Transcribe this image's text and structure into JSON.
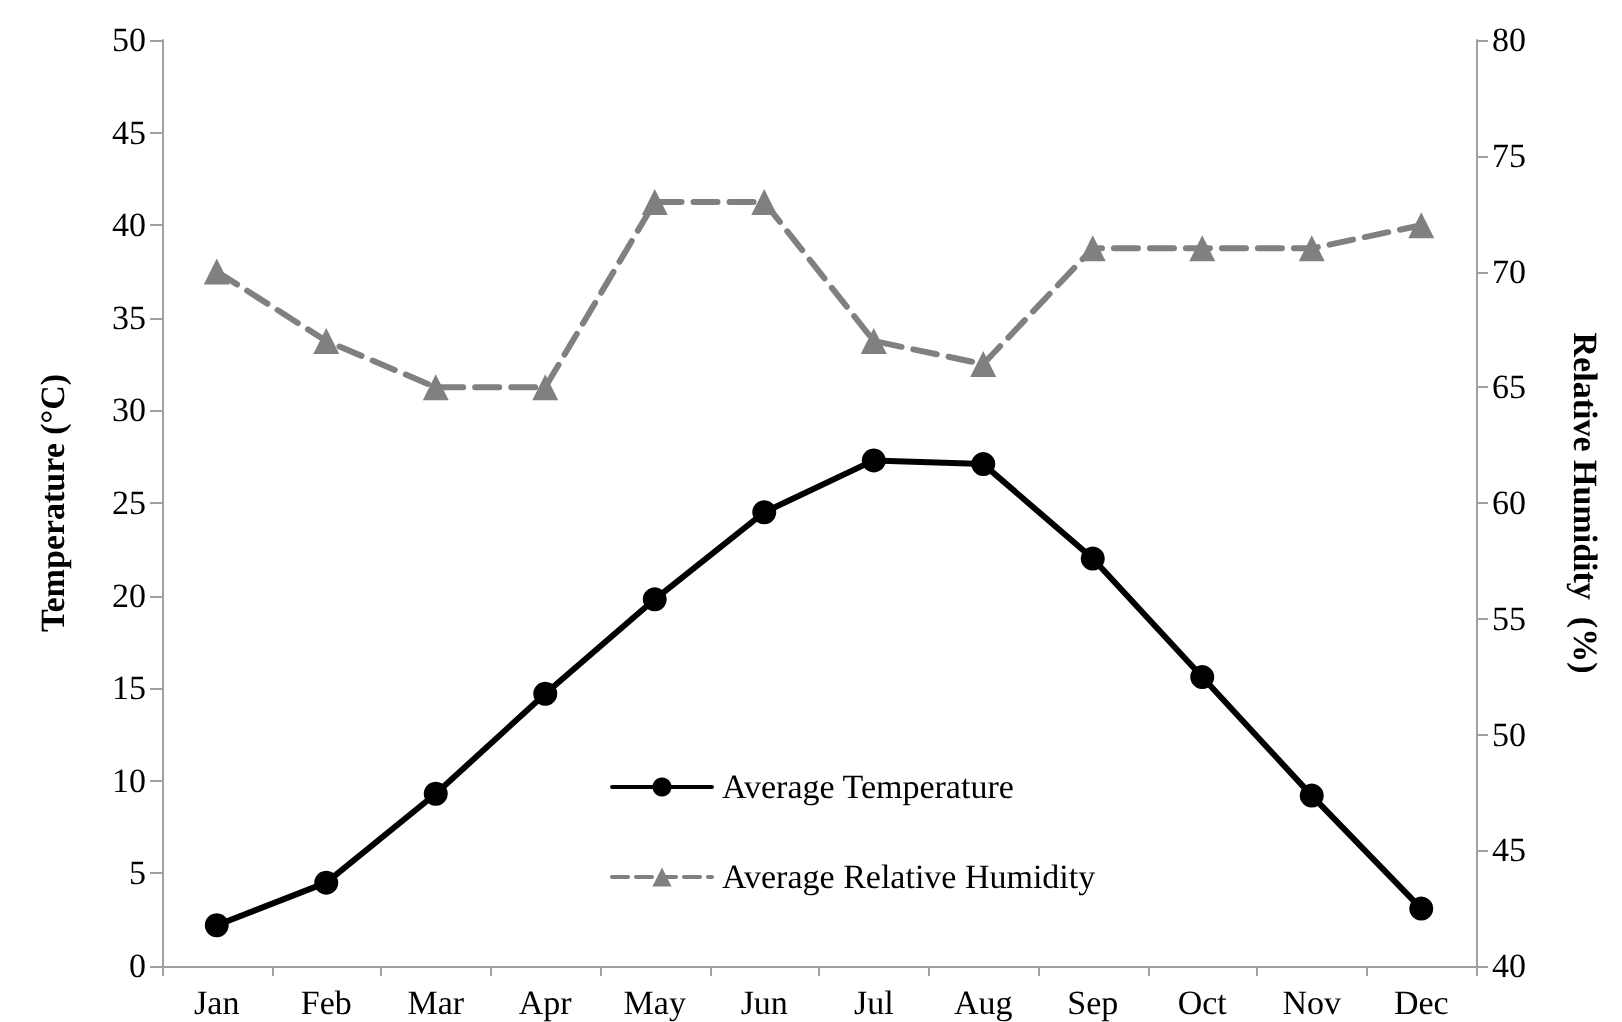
{
  "chart_data": {
    "type": "line",
    "ylabel": "Temperature (°C)",
    "y2label": "Relative Humidity  (%)",
    "categories": [
      "Jan",
      "Feb",
      "Mar",
      "Apr",
      "May",
      "Jun",
      "Jul",
      "Aug",
      "Sep",
      "Oct",
      "Nov",
      "Dec"
    ],
    "series": [
      {
        "name": "Average Temperature",
        "color": "#000000",
        "marker": "circle",
        "line_style": "solid",
        "values": [
          2.2,
          4.5,
          9.3,
          14.7,
          19.8,
          24.5,
          27.3,
          27.1,
          22.0,
          15.6,
          9.2,
          3.1
        ]
      },
      {
        "name": "Average Relative Humidity",
        "color": "#808080",
        "marker": "triangle",
        "line_style": "dashed",
        "axis": "y2",
        "values": [
          70,
          67,
          65,
          65,
          73,
          73,
          67,
          66,
          71,
          71,
          71,
          72
        ]
      }
    ],
    "ylim": [
      0,
      50
    ],
    "yticks": [
      0,
      5,
      10,
      15,
      20,
      25,
      30,
      35,
      40,
      45,
      50
    ],
    "y2lim": [
      40,
      80
    ],
    "y2ticks": [
      40,
      45,
      50,
      55,
      60,
      65,
      70,
      75,
      80
    ],
    "grid": false,
    "legend": "bottom"
  }
}
